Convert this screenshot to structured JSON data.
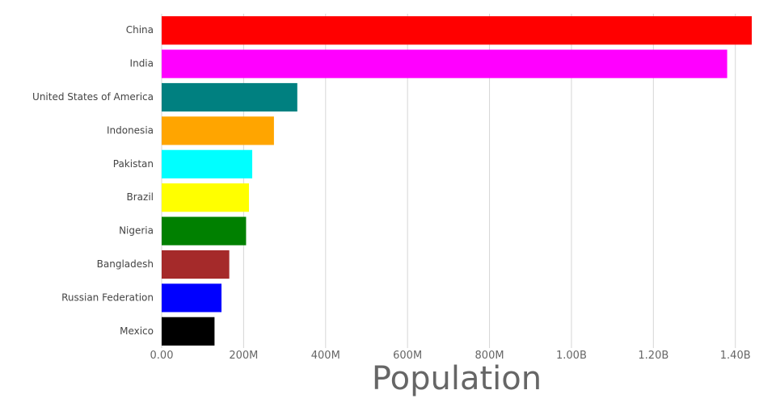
{
  "chart_data": {
    "type": "bar",
    "orientation": "horizontal",
    "xlabel": "Population",
    "ylabel": "",
    "title": "",
    "xlim": [
      0,
      1440000000
    ],
    "grid": true,
    "categories": [
      "China",
      "India",
      "United States of America",
      "Indonesia",
      "Pakistan",
      "Brazil",
      "Nigeria",
      "Bangladesh",
      "Russian Federation",
      "Mexico"
    ],
    "values": [
      1440000000,
      1380000000,
      331000000,
      274000000,
      221000000,
      213000000,
      206000000,
      165000000,
      146000000,
      129000000
    ],
    "colors": [
      "#ff0000",
      "#ff00ff",
      "#008080",
      "#ffa500",
      "#00ffff",
      "#ffff00",
      "#008000",
      "#a52a2a",
      "#0000ff",
      "#000000"
    ],
    "xticks": [
      {
        "value": 0,
        "label": "0.00"
      },
      {
        "value": 200000000,
        "label": "200M"
      },
      {
        "value": 400000000,
        "label": "400M"
      },
      {
        "value": 600000000,
        "label": "600M"
      },
      {
        "value": 800000000,
        "label": "800M"
      },
      {
        "value": 1000000000,
        "label": "1.00B"
      },
      {
        "value": 1200000000,
        "label": "1.20B"
      },
      {
        "value": 1400000000,
        "label": "1.40B"
      }
    ]
  }
}
